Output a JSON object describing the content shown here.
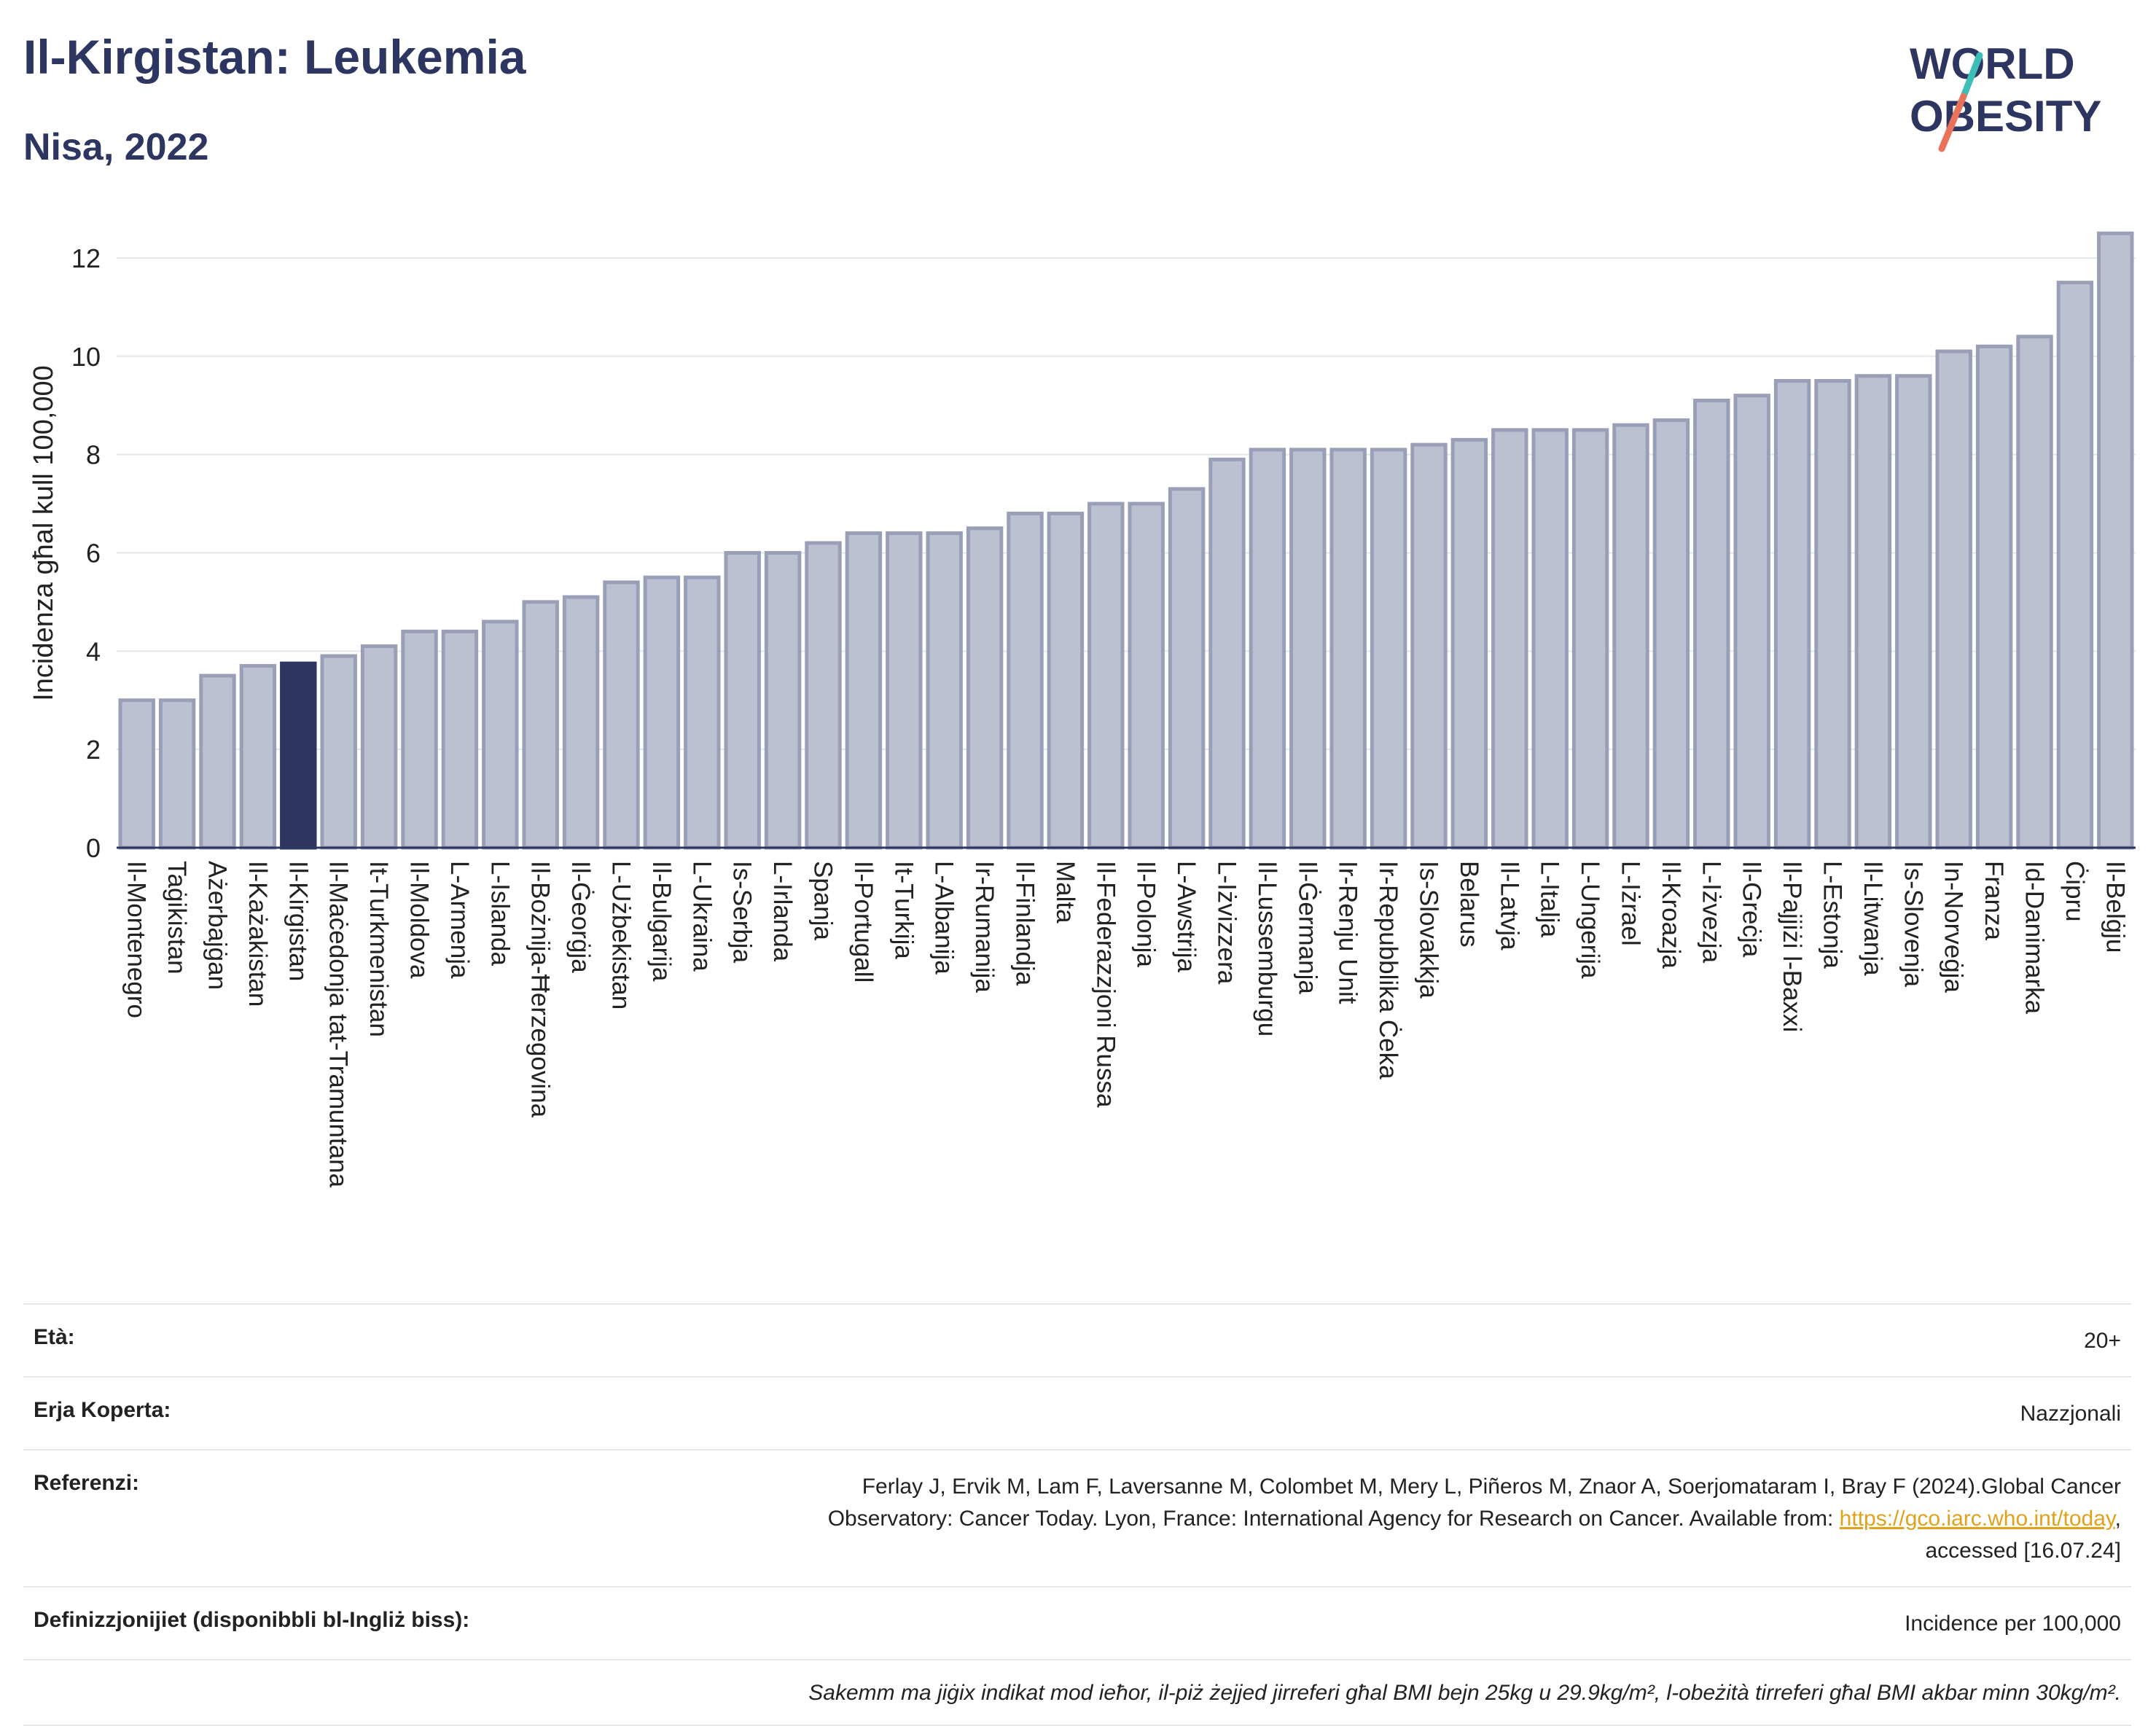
{
  "header": {
    "title": "Il-Kirgistan: Leukemia",
    "subtitle": "Nisa, 2022"
  },
  "logo": {
    "line1": "WORLD",
    "line2": "OBESITY",
    "slash_colors": [
      "#3dbfb8",
      "#e8735a"
    ]
  },
  "colors": {
    "bar": "#bcc1d2",
    "bar_border": "#9a9fb8",
    "highlight": "#2d3561",
    "text_dark": "#2d3561",
    "grid": "#e4e6ec"
  },
  "chart_data": {
    "type": "bar",
    "ylabel": "Incidenza għal kull 100,000",
    "ylim": [
      0,
      12.8
    ],
    "yticks": [
      0,
      2,
      4,
      6,
      8,
      10,
      12
    ],
    "grid": true,
    "highlight": "Il-Kirgistan",
    "categories": [
      "Il-Montenegro",
      "Taġikistan",
      "Ażerbajġan",
      "Il-Każakistan",
      "Il-Kirgistan",
      "Il-Maċedonja tat-Tramuntana",
      "It-Turkmenistan",
      "Il-Moldova",
      "L-Armenja",
      "L-Islanda",
      "Il-Bożnija-Ħerzegovina",
      "Il-Ġeorġja",
      "L-Użbekistan",
      "Il-Bulgarija",
      "L-Ukraina",
      "Is-Serbja",
      "L-Irlanda",
      "Spanja",
      "Il-Portugall",
      "It-Turkija",
      "L-Albanija",
      "Ir-Rumanija",
      "Il-Finlandja",
      "Malta",
      "Il-Federazzjoni Russa",
      "Il-Polonja",
      "L-Awstrija",
      "L-Iżvizzera",
      "Il-Lussemburgu",
      "Il-Ġermanja",
      "Ir-Renju Unit",
      "Ir-Repubblika Ċeka",
      "Is-Slovakkja",
      "Belarus",
      "Il-Latvja",
      "L-Italja",
      "L-Ungerija",
      "L-Iżrael",
      "Il-Kroazja",
      "L-Iżvezja",
      "Il-Greċja",
      "Il-Pajjiżi l-Baxxi",
      "L-Estonja",
      "Il-Litwanja",
      "Is-Slovenja",
      "In-Norveġja",
      "Franza",
      "Id-Danimarka",
      "Ċipru",
      "Il-Belġju"
    ],
    "values": [
      3.0,
      3.0,
      3.5,
      3.7,
      3.75,
      3.9,
      4.1,
      4.4,
      4.4,
      4.6,
      5.0,
      5.1,
      5.4,
      5.5,
      5.5,
      6.0,
      6.0,
      6.2,
      6.4,
      6.4,
      6.4,
      6.5,
      6.8,
      6.8,
      7.0,
      7.0,
      7.3,
      7.9,
      8.1,
      8.1,
      8.1,
      8.1,
      8.2,
      8.3,
      8.5,
      8.5,
      8.5,
      8.6,
      8.7,
      9.1,
      9.2,
      9.5,
      9.5,
      9.6,
      9.6,
      10.1,
      10.2,
      10.4,
      11.5,
      12.5
    ]
  },
  "meta": {
    "age_label": "Età:",
    "age_value": "20+",
    "area_label": "Erja Koperta:",
    "area_value": "Nazzjonali",
    "ref_label": "Referenzi:",
    "ref_text_1": "Ferlay J, Ervik M, Lam F, Laversanne M, Colombet M, Mery L, Piñeros M, Znaor A, Soerjomataram I, Bray F (2024).Global Cancer",
    "ref_text_2": "Observatory: Cancer Today. Lyon, France: International Agency for Research on Cancer. Available from: ",
    "ref_link": "https://gco.iarc.who.int/today",
    "ref_text_3": ",",
    "ref_text_4": "accessed [16.07.24]",
    "def_label": "Definizzjonijiet (disponibbli bl-Ingliż biss):",
    "def_value": "Incidence per 100,000",
    "note": "Sakemm ma jiġix indikat mod ieħor, il-piż żejjed jirreferi għal BMI bejn 25kg u 29.9kg/m², l-obeżità tirreferi għal BMI akbar minn 30kg/m²."
  }
}
